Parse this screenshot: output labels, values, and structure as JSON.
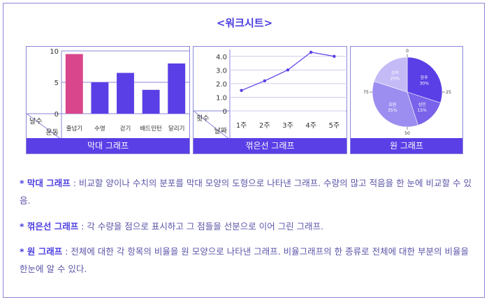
{
  "title": "<워크시트>",
  "colors": {
    "accent": "#5a3fe6",
    "highlight": "#d9468c",
    "border": "#8a86d8",
    "text": "#5a55a8"
  },
  "chart_data": [
    {
      "type": "bar",
      "caption": "막대 그래프",
      "corner_top": "날수",
      "corner_bottom": "운동",
      "categories": [
        "줄넘기",
        "수영",
        "걷기",
        "배드민턴",
        "달리기"
      ],
      "values": [
        9.5,
        5,
        6.5,
        3.8,
        8
      ],
      "highlight_index": 0,
      "yticks": [
        0,
        5,
        10
      ],
      "ylim": [
        0,
        10
      ]
    },
    {
      "type": "line",
      "caption": "꺾은선 그래프",
      "corner_top": "횟수",
      "corner_bottom": "날짜",
      "categories": [
        "1주",
        "2주",
        "3주",
        "4주",
        "5주"
      ],
      "values": [
        1.5,
        2.2,
        3.0,
        4.3,
        4.0
      ],
      "yticks": [
        "0",
        "1.0",
        "2.0",
        "3.0",
        "4.0"
      ],
      "ylim": [
        0,
        4.5
      ]
    },
    {
      "type": "pie",
      "caption": "원 그래프",
      "ticks": [
        "0",
        "25",
        "50",
        "75"
      ],
      "slices": [
        {
          "label": "한주",
          "value": 30,
          "pct": "30%",
          "color": "#5a3fe6"
        },
        {
          "label": "성민",
          "value": 15,
          "pct": "15%",
          "color": "#7a63ea"
        },
        {
          "label": "효원",
          "value": 35,
          "pct": "35%",
          "color": "#9c8ef0"
        },
        {
          "label": "선하",
          "value": 20,
          "pct": "20%",
          "color": "#c3baf6"
        }
      ]
    }
  ],
  "descriptions": [
    {
      "term": "* 막대 그래프",
      "sep": " : ",
      "text": "비교할 양이나 수치의 분포를 막대 모양의 도형으로 나타낸 그래프. 수량의 많고 적음을 한 눈에 비교할 수 있음."
    },
    {
      "term": "* 꺾은선 그래프",
      "sep": " : ",
      "text": "각 수량을 점으로 표시하고 그 점들을 선분으로 이어 그린 그래프."
    },
    {
      "term": "* 원 그래프",
      "sep": " : ",
      "text": "전체에 대한 각 항목의 비율을 원 모양으로 나타낸 그래프. 비율그래프의 한 종류로 전체에 대한 부분의 비율을 한눈에 알 수 있다."
    }
  ]
}
